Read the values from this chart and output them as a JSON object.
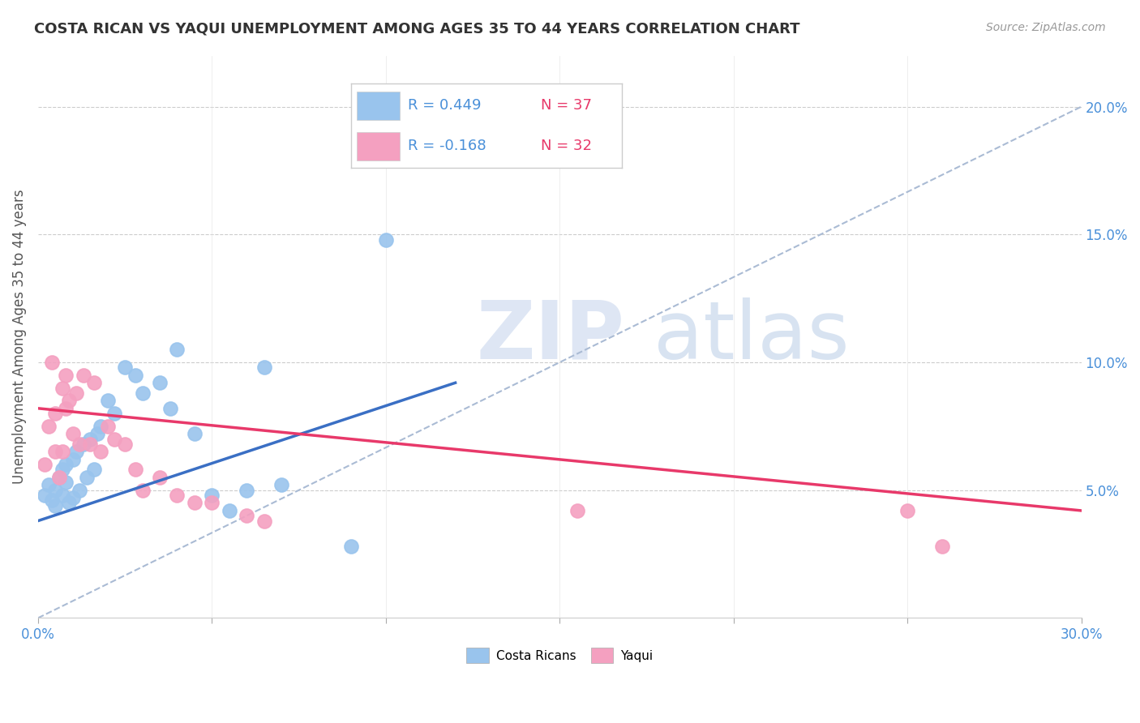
{
  "title": "COSTA RICAN VS YAQUI UNEMPLOYMENT AMONG AGES 35 TO 44 YEARS CORRELATION CHART",
  "source": "Source: ZipAtlas.com",
  "ylabel": "Unemployment Among Ages 35 to 44 years",
  "xlim": [
    0.0,
    0.3
  ],
  "ylim": [
    0.0,
    0.22
  ],
  "xticks": [
    0.0,
    0.05,
    0.1,
    0.15,
    0.2,
    0.25,
    0.3
  ],
  "yticks_right": [
    0.05,
    0.1,
    0.15,
    0.2
  ],
  "ytick_labels_right": [
    "5.0%",
    "10.0%",
    "15.0%",
    "20.0%"
  ],
  "blue_color": "#99C4ED",
  "pink_color": "#F4A0C0",
  "blue_line_color": "#3A6FC4",
  "pink_line_color": "#E8396A",
  "dashed_line_color": "#AABBD4",
  "legend_r_blue": "R = 0.449",
  "legend_n_blue": "N = 37",
  "legend_r_pink": "R = -0.168",
  "legend_n_pink": "N = 32",
  "watermark_zip": "ZIP",
  "watermark_atlas": "atlas",
  "blue_scatter_x": [
    0.002,
    0.003,
    0.004,
    0.005,
    0.005,
    0.006,
    0.007,
    0.007,
    0.008,
    0.008,
    0.009,
    0.01,
    0.01,
    0.011,
    0.012,
    0.013,
    0.014,
    0.015,
    0.016,
    0.017,
    0.018,
    0.02,
    0.022,
    0.025,
    0.028,
    0.03,
    0.035,
    0.038,
    0.04,
    0.045,
    0.05,
    0.055,
    0.06,
    0.065,
    0.07,
    0.09,
    0.1
  ],
  "blue_scatter_y": [
    0.048,
    0.052,
    0.046,
    0.05,
    0.044,
    0.055,
    0.048,
    0.058,
    0.053,
    0.06,
    0.045,
    0.062,
    0.047,
    0.065,
    0.05,
    0.068,
    0.055,
    0.07,
    0.058,
    0.072,
    0.075,
    0.085,
    0.08,
    0.098,
    0.095,
    0.088,
    0.092,
    0.082,
    0.105,
    0.072,
    0.048,
    0.042,
    0.05,
    0.098,
    0.052,
    0.028,
    0.148
  ],
  "pink_scatter_x": [
    0.002,
    0.003,
    0.004,
    0.005,
    0.005,
    0.006,
    0.007,
    0.007,
    0.008,
    0.008,
    0.009,
    0.01,
    0.011,
    0.012,
    0.013,
    0.015,
    0.016,
    0.018,
    0.02,
    0.022,
    0.025,
    0.028,
    0.03,
    0.035,
    0.04,
    0.045,
    0.05,
    0.06,
    0.065,
    0.155,
    0.25,
    0.26
  ],
  "pink_scatter_y": [
    0.06,
    0.075,
    0.1,
    0.065,
    0.08,
    0.055,
    0.09,
    0.065,
    0.095,
    0.082,
    0.085,
    0.072,
    0.088,
    0.068,
    0.095,
    0.068,
    0.092,
    0.065,
    0.075,
    0.07,
    0.068,
    0.058,
    0.05,
    0.055,
    0.048,
    0.045,
    0.045,
    0.04,
    0.038,
    0.042,
    0.042,
    0.028
  ],
  "blue_trend_x0": 0.0,
  "blue_trend_y0": 0.038,
  "blue_trend_x1": 0.12,
  "blue_trend_y1": 0.092,
  "pink_trend_x0": 0.0,
  "pink_trend_y0": 0.082,
  "pink_trend_x1": 0.3,
  "pink_trend_y1": 0.042,
  "dashed_trend_x0": 0.0,
  "dashed_trend_y0": 0.0,
  "dashed_trend_x1": 0.3,
  "dashed_trend_y1": 0.2
}
